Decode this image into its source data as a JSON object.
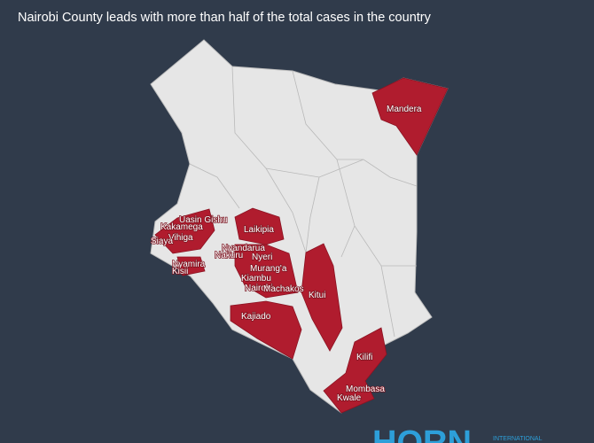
{
  "title": "Nairobi County leads with more than half of the total cases in the country",
  "counties": [
    "Mandera",
    "Uasin Gishu",
    "Kakamega",
    "Vihiga",
    "Siaya",
    "Laikipia",
    "Nyandarua",
    "Nakuru",
    "Nyeri",
    "Nyamira",
    "Kisii",
    "Murang'a",
    "Kiambu",
    "Nairobi",
    "Machakos",
    "Kitui",
    "Kajiado",
    "Kilifi",
    "Mombasa",
    "Kwale"
  ],
  "logo": {
    "name": "HORN",
    "tagline": "INTERNATIONAL"
  }
}
